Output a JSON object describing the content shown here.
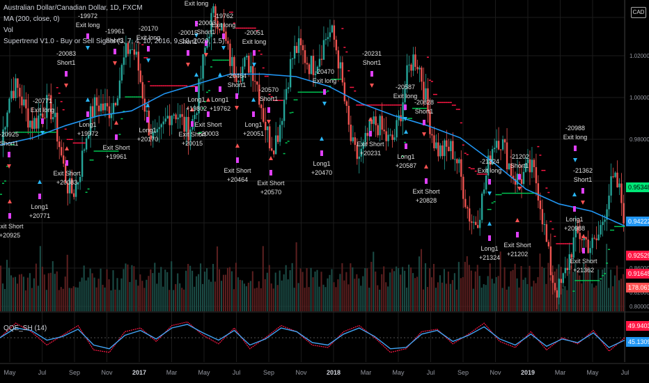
{
  "legend": {
    "title": "Australian Dollar/Canadian Dollar, 1D, FXCM",
    "ma": "MA (200, close, 0)",
    "vol": "Vol",
    "supertrend": "Supertrend V1.0 - Buy or Sell Signal (3, 7, 4, 10, 2016, 9, 10, 2020, 1.5)",
    "qqe": "QQE_SH (14)"
  },
  "currency_button": "CAD",
  "badges": [
    {
      "text": "0.95348",
      "color": "#00e676",
      "fg": "#000000"
    },
    {
      "text": "0.94222",
      "color": "#2196f3",
      "fg": "#ffffff"
    },
    {
      "text": "0.92529",
      "color": "#ff1744",
      "fg": "#ffffff"
    },
    {
      "text": "0.91645",
      "color": "#ff1744",
      "fg": "#ffffff"
    },
    {
      "text": "178.061K",
      "color": "#ff5252",
      "fg": "#ffffff"
    },
    {
      "text": "49.94039",
      "color": "#ff1744",
      "fg": "#ffffff"
    },
    {
      "text": "45.13091",
      "color": "#2196f3",
      "fg": "#ffffff"
    }
  ],
  "colors": {
    "up_candle": "#26a69a",
    "down_candle": "#ef5350",
    "ma": "#2196f3",
    "supertrend_up": "#00c853",
    "supertrend_down": "#ff1744",
    "signal": "#e040fb",
    "long_arrow": "#29b6f6",
    "short_arrow": "#ff5252",
    "qqe_fast": "#ff1744",
    "qqe_slow": "#42a5f5"
  },
  "chart_data": [
    {
      "type": "line",
      "subtype": "candlestick",
      "x_ticks": [
        "May",
        "Jul",
        "Sep",
        "Nov",
        "2017",
        "Mar",
        "May",
        "Jul",
        "Sep",
        "Nov",
        "2018",
        "Mar",
        "May",
        "Jul",
        "Sep",
        "Nov",
        "2019",
        "Mar",
        "May",
        "Jul"
      ],
      "y_ticks": [
        "1.02000",
        "1.00000",
        "0.98000",
        "0.86000",
        "0.84000",
        "0.82000",
        "0.80000"
      ],
      "ylim": [
        0.91,
        1.03
      ],
      "grid": true,
      "series": [
        {
          "name": "MA (200, close, 0)",
          "x": [
            "2016-05",
            "2016-07",
            "2016-09",
            "2016-11",
            "2017-01",
            "2017-03",
            "2017-05",
            "2017-07",
            "2017-09",
            "2017-11",
            "2018-01",
            "2018-03",
            "2018-05",
            "2018-07",
            "2018-09",
            "2018-11",
            "2019-01",
            "2019-03",
            "2019-05",
            "2019-07"
          ],
          "values": [
            0.975,
            0.978,
            0.983,
            0.987,
            0.989,
            0.996,
            1.0,
            1.004,
            1.004,
            1.003,
            0.999,
            0.992,
            0.987,
            0.983,
            0.978,
            0.968,
            0.957,
            0.951,
            0.948,
            0.942
          ]
        }
      ],
      "annotations": [
        {
          "label": "-20925",
          "sub": "Short1"
        },
        {
          "label": "Exit Short",
          "sub": "+20925"
        },
        {
          "label": "-20771",
          "sub": "Exit long"
        },
        {
          "label": "Long1",
          "sub": "+20771"
        },
        {
          "label": "-20083",
          "sub": "Short1"
        },
        {
          "label": "Exit Short",
          "sub": "+20083"
        },
        {
          "label": "-19972",
          "sub": "Exit long"
        },
        {
          "label": "Long1",
          "sub": "+19972"
        },
        {
          "label": "-19961",
          "sub": "Short1"
        },
        {
          "label": "Exit Short",
          "sub": "+19961"
        },
        {
          "label": "-20170",
          "sub": "Exit long"
        },
        {
          "label": "Long1",
          "sub": "+20170"
        },
        {
          "label": "Exit long",
          "sub": ""
        },
        {
          "label": "-20015",
          "sub": "Short1"
        },
        {
          "label": "Exit Short",
          "sub": "+20015"
        },
        {
          "label": "-20003",
          "sub": "Short1"
        },
        {
          "label": "Long1",
          "sub": "+19802"
        },
        {
          "label": "Exit Short",
          "sub": "+20003"
        },
        {
          "label": "-19762",
          "sub": "Exit long"
        },
        {
          "label": "Long1",
          "sub": "+19762"
        },
        {
          "label": "-20464",
          "sub": "Short1"
        },
        {
          "label": "Exit Short",
          "sub": "+20464"
        },
        {
          "label": "-20051",
          "sub": "Exit long"
        },
        {
          "label": "Long1",
          "sub": "+20051"
        },
        {
          "label": "-20570",
          "sub": "Short1"
        },
        {
          "label": "Exit Short",
          "sub": "+20570"
        },
        {
          "label": "-20470",
          "sub": "Exit long"
        },
        {
          "label": "Long1",
          "sub": "+20470"
        },
        {
          "label": "-20231",
          "sub": "Short1"
        },
        {
          "label": "Exit Short",
          "sub": "+20231"
        },
        {
          "label": "-20587",
          "sub": "Exit long"
        },
        {
          "label": "Long1",
          "sub": "+20587"
        },
        {
          "label": "-20828",
          "sub": "Short1"
        },
        {
          "label": "Exit Short",
          "sub": "+20828"
        },
        {
          "label": "-21324",
          "sub": "Exit long"
        },
        {
          "label": "Long1",
          "sub": "+21324"
        },
        {
          "label": "-21202",
          "sub": "Short1"
        },
        {
          "label": "Exit Short",
          "sub": "+21202"
        },
        {
          "label": "-20988",
          "sub": "Exit long"
        },
        {
          "label": "Long1",
          "sub": "+20988"
        },
        {
          "label": "-21362",
          "sub": "Short1"
        },
        {
          "label": "Exit Short",
          "sub": "+21362"
        }
      ]
    },
    {
      "type": "line",
      "name": "QQE_SH (14)",
      "series": [
        {
          "name": "fast",
          "values": [
            50,
            62,
            55,
            44,
            52,
            60,
            40,
            38,
            55,
            58,
            47,
            60,
            63,
            52,
            45,
            58,
            41,
            50,
            60,
            55,
            44,
            42,
            55,
            60,
            50,
            38,
            41,
            55,
            57,
            45,
            53,
            62,
            47,
            42,
            55,
            40,
            50,
            45,
            56,
            39,
            50
          ]
        },
        {
          "name": "slow",
          "values": [
            50,
            58,
            56,
            48,
            51,
            57,
            44,
            41,
            52,
            56,
            49,
            58,
            61,
            54,
            48,
            56,
            44,
            49,
            58,
            55,
            46,
            44,
            53,
            58,
            51,
            41,
            42,
            53,
            56,
            47,
            52,
            59,
            49,
            44,
            53,
            43,
            49,
            46,
            54,
            42,
            48
          ]
        }
      ],
      "last_values": [
        49.94039,
        45.13091
      ]
    }
  ]
}
